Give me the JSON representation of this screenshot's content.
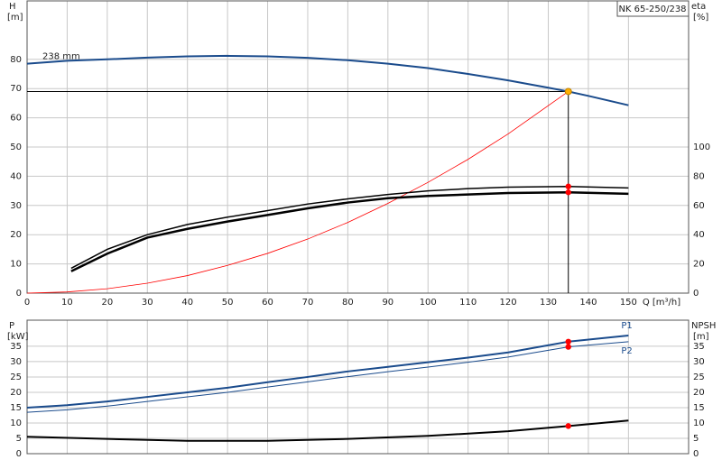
{
  "chart_data": [
    {
      "type": "line",
      "title": "NK 65-250/238",
      "annotation": "238 mm",
      "x_label": "Q [m³/h]",
      "y_label": "H",
      "y_unit": "[m]",
      "y2_label": "eta",
      "y2_unit": "[%]",
      "xlim": [
        0,
        165
      ],
      "xticks": [
        0,
        10,
        20,
        30,
        40,
        50,
        60,
        70,
        80,
        90,
        100,
        110,
        120,
        130,
        140,
        150
      ],
      "ylim": [
        0,
        100
      ],
      "yticks": [
        0,
        10,
        20,
        30,
        40,
        50,
        60,
        70,
        80
      ],
      "y2lim": [
        0,
        200
      ],
      "y2ticks": [
        0,
        20,
        40,
        60,
        80,
        100
      ],
      "grid": true,
      "operating_point": {
        "x": 135,
        "y": 69,
        "color": "#ffb000"
      },
      "marker_x": 135,
      "series": [
        {
          "name": "238 mm",
          "color": "#1a4b8c",
          "width": 2,
          "x": [
            0,
            10,
            20,
            30,
            40,
            50,
            60,
            70,
            80,
            90,
            100,
            110,
            120,
            130,
            135,
            140,
            150
          ],
          "values": [
            78.5,
            79.5,
            80,
            80.6,
            81,
            81.2,
            81,
            80.5,
            79.7,
            78.5,
            77,
            75,
            72.8,
            70.3,
            69,
            67.5,
            64.3
          ]
        },
        {
          "color": "#ff0000",
          "width": 0.8,
          "x": [
            0,
            10,
            20,
            30,
            40,
            50,
            60,
            70,
            80,
            90,
            100,
            110,
            120,
            135
          ],
          "values": [
            0,
            0.4,
            1.5,
            3.4,
            6,
            9.5,
            13.6,
            18.5,
            24.2,
            30.7,
            37.9,
            45.8,
            54.5,
            69
          ]
        },
        {
          "color": "#000000",
          "width": 1.5,
          "axis": "y2",
          "marker": true,
          "x": [
            11,
            20,
            30,
            40,
            50,
            60,
            70,
            80,
            90,
            100,
            110,
            120,
            135,
            150
          ],
          "values": [
            17,
            30,
            40,
            47,
            52,
            56.5,
            61,
            64.5,
            67.5,
            70,
            71.5,
            72.5,
            73,
            72
          ]
        },
        {
          "color": "#000000",
          "width": 2.5,
          "axis": "y2",
          "marker": true,
          "x": [
            11,
            20,
            30,
            40,
            50,
            60,
            70,
            80,
            90,
            100,
            110,
            120,
            135,
            150
          ],
          "values": [
            15,
            27,
            38,
            44,
            49,
            53.5,
            58,
            62,
            65,
            66.5,
            67.5,
            68.5,
            69,
            68
          ]
        }
      ]
    },
    {
      "type": "line",
      "y_label": "P",
      "y_unit": "[kW]",
      "y2_label": "NPSH",
      "y2_unit": "[m]",
      "xlim": [
        0,
        165
      ],
      "xticks": [
        0,
        10,
        20,
        30,
        40,
        50,
        60,
        70,
        80,
        90,
        100,
        110,
        120,
        130,
        140,
        150
      ],
      "ylim": [
        0,
        43.5
      ],
      "yticks": [
        0,
        5,
        10,
        15,
        20,
        25,
        30,
        35
      ],
      "y2lim": [
        0,
        43.5
      ],
      "y2ticks": [
        0,
        5,
        10,
        15,
        20,
        25,
        30,
        35
      ],
      "grid": true,
      "marker_x": 135,
      "series": [
        {
          "name": "P1",
          "color": "#1a4b8c",
          "width": 2,
          "marker": true,
          "x": [
            0,
            10,
            20,
            30,
            40,
            50,
            60,
            70,
            80,
            90,
            100,
            110,
            120,
            135,
            150
          ],
          "values": [
            15,
            15.8,
            17,
            18.5,
            20,
            21.5,
            23.3,
            25,
            26.8,
            28.3,
            29.8,
            31.3,
            33,
            36.5,
            38.5
          ]
        },
        {
          "name": "P2",
          "color": "#1a4b8c",
          "width": 1,
          "marker": true,
          "x": [
            0,
            10,
            20,
            30,
            40,
            50,
            60,
            70,
            80,
            90,
            100,
            110,
            120,
            135,
            150
          ],
          "values": [
            13.5,
            14.3,
            15.5,
            17,
            18.5,
            20,
            21.7,
            23.4,
            25.1,
            26.7,
            28.2,
            29.8,
            31.5,
            34.8,
            36.5
          ]
        },
        {
          "color": "#000000",
          "width": 2,
          "axis": "y2",
          "marker": true,
          "x": [
            0,
            20,
            40,
            60,
            80,
            100,
            120,
            135,
            150
          ],
          "values": [
            5.5,
            4.8,
            4.2,
            4.2,
            4.8,
            5.8,
            7.3,
            9,
            10.8
          ]
        }
      ]
    }
  ]
}
